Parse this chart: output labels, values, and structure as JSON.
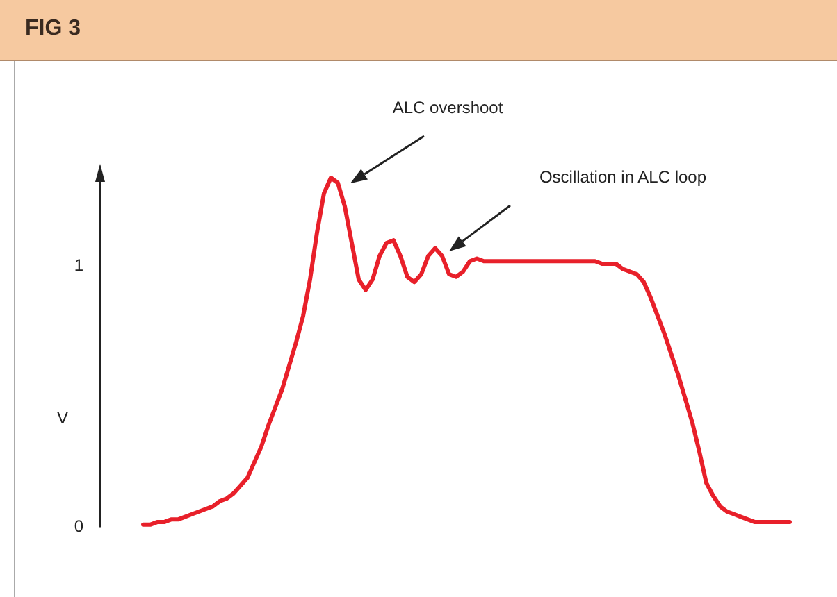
{
  "chart_data": {
    "type": "line",
    "title": "FIG 3",
    "ylabel": "V",
    "annotations": [
      "ALC overshoot",
      "Oscillation in ALC loop"
    ],
    "categories": [
      null,
      null,
      null,
      null,
      null,
      null,
      null,
      null,
      null,
      null,
      null,
      null,
      null,
      null,
      null,
      null,
      null,
      null,
      null,
      null,
      null,
      null,
      null,
      null,
      null,
      null,
      null,
      null,
      null,
      null,
      null,
      null,
      null,
      null,
      null,
      null,
      null,
      null,
      null,
      null,
      null,
      null,
      null,
      null,
      null,
      null,
      null,
      null,
      null,
      null,
      null,
      null,
      null,
      null,
      null,
      null,
      null,
      null,
      null,
      null,
      null,
      null,
      null,
      null,
      null,
      null,
      null,
      null,
      null,
      null,
      null,
      null,
      null,
      null,
      null,
      null,
      null,
      null,
      null,
      null,
      null,
      null,
      null,
      null,
      null,
      null,
      null,
      null,
      null,
      null,
      null,
      null,
      null,
      null
    ],
    "series": [
      {
        "color": "#e8202a",
        "values": [
          0.01,
          0.01,
          0.02,
          0.02,
          0.03,
          0.03,
          0.04,
          0.05,
          0.06,
          0.07,
          0.08,
          0.1,
          0.11,
          0.13,
          0.16,
          0.19,
          0.25,
          0.31,
          0.39,
          0.46,
          0.53,
          0.62,
          0.71,
          0.81,
          0.95,
          1.13,
          1.28,
          1.34,
          1.32,
          1.23,
          1.09,
          0.95,
          0.91,
          0.95,
          1.04,
          1.09,
          1.1,
          1.04,
          0.96,
          0.94,
          0.97,
          1.04,
          1.07,
          1.04,
          0.97,
          0.96,
          0.98,
          1.02,
          1.03,
          1.02,
          1.02,
          1.02,
          1.02,
          1.02,
          1.02,
          1.02,
          1.02,
          1.02,
          1.02,
          1.02,
          1.02,
          1.02,
          1.02,
          1.02,
          1.02,
          1.02,
          1.01,
          1.01,
          1.01,
          0.99,
          0.98,
          0.97,
          0.94,
          0.88,
          0.81,
          0.74,
          0.66,
          0.58,
          0.49,
          0.4,
          0.29,
          0.17,
          0.12,
          0.08,
          0.06,
          0.05,
          0.04,
          0.03,
          0.02,
          0.02,
          0.02,
          0.02,
          0.02,
          0.02
        ]
      }
    ],
    "ylim": [
      0,
      1.34
    ],
    "yticks": [
      0,
      1
    ],
    "grid": false,
    "legend": false,
    "tick_labels": "y",
    "marker": "none"
  }
}
